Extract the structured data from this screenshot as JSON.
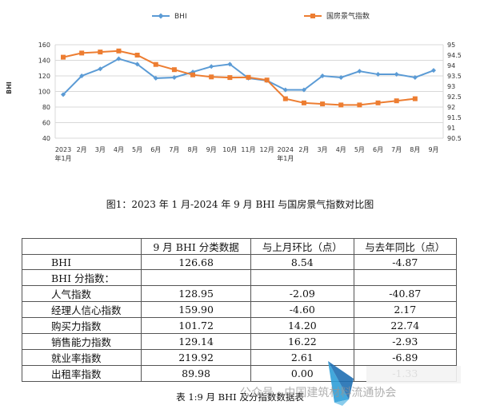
{
  "chart_data": {
    "type": "line",
    "legend_position": "top",
    "categories": [
      "2023\n年1月",
      "2月",
      "3月",
      "4月",
      "5月",
      "6月",
      "7月",
      "8月",
      "9月",
      "10月",
      "11月",
      "12月",
      "2024\n年1月",
      "2月",
      "3月",
      "4月",
      "5月",
      "6月",
      "7月",
      "8月",
      "9月"
    ],
    "series": [
      {
        "name": "BHI",
        "axis": "left",
        "color": "#5B9BD5",
        "values": [
          96,
          120,
          129,
          142,
          135,
          117,
          118,
          125,
          132,
          135,
          117,
          114,
          102,
          102,
          120,
          118,
          126,
          122,
          122,
          118,
          127
        ]
      },
      {
        "name": "国房景气指数",
        "axis": "right",
        "color": "#ED7D31",
        "values": [
          94.4,
          94.6,
          94.65,
          94.7,
          94.5,
          94.05,
          93.8,
          93.55,
          93.45,
          93.42,
          93.43,
          93.3,
          92.4,
          92.2,
          92.15,
          92.1,
          92.1,
          92.2,
          92.3,
          92.4,
          null
        ]
      }
    ],
    "ylabel": "BHI",
    "ylim": [
      40,
      160
    ],
    "yticks": [
      40,
      60,
      80,
      100,
      120,
      140,
      160
    ],
    "y2lim": [
      90.5,
      95
    ],
    "y2ticks": [
      "90.5",
      "91",
      "91.5",
      "92",
      "92.5",
      "93",
      "93.5",
      "94",
      "94.5",
      "95"
    ],
    "grid": true
  },
  "caption1": "图1：2023 年 1 月-2024 年 9 月 BHI 与国房景气指数对比图",
  "table": {
    "headers": [
      "",
      "9 月 BHI 分类数据",
      "与上月环比（点）",
      "与去年同比（点）"
    ],
    "bhi_row": [
      "BHI",
      "126.68",
      "8.54",
      "-4.87"
    ],
    "group_label": "BHI 分指数：",
    "rows": [
      [
        "人气指数",
        "128.95",
        "-2.09",
        "-40.87"
      ],
      [
        "经理人信心指数",
        "159.90",
        "-4.60",
        "2.17"
      ],
      [
        "购买力指数",
        "101.72",
        "14.20",
        "22.74"
      ],
      [
        "销售能力指数",
        "129.14",
        "16.22",
        "-2.93"
      ],
      [
        "就业率指数",
        "219.92",
        "2.61",
        "-6.89"
      ],
      [
        "出租率指数",
        "89.98",
        "0.00",
        "-1.33"
      ]
    ]
  },
  "caption2": "表 1:9 月 BHI 及分指数数据表",
  "watermark": "公众号 · 中国建筑材料流通协会"
}
